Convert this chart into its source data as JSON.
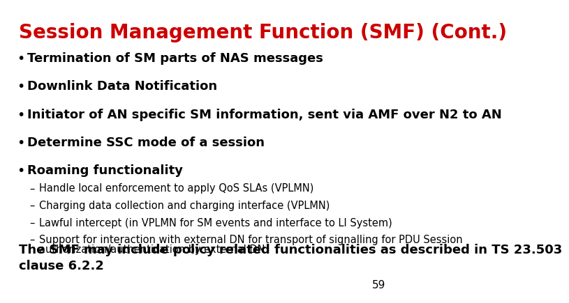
{
  "title": "Session Management Function (SMF) (Cont.)",
  "title_color": "#CC0000",
  "title_fontsize": 20,
  "background_color": "#FFFFFF",
  "bullet_points": [
    "Termination of SM parts of NAS messages",
    "Downlink Data Notification",
    "Initiator of AN specific SM information, sent via AMF over N2 to AN",
    "Determine SSC mode of a session",
    "Roaming functionality"
  ],
  "sub_bullets": [
    "Handle local enforcement to apply QoS SLAs (VPLMN)",
    "Charging data collection and charging interface (VPLMN)",
    "Lawful intercept (in VPLMN for SM events and interface to LI System)",
    "Support for interaction with external DN for transport of signalling for PDU Session\nauthorization/authentication by external DN"
  ],
  "footer_line1": "The SMF may include policy related functionalities as described in TS 23.503",
  "footer_line2": "clause 6.2.2",
  "page_number": "59",
  "bullet_fontsize": 13,
  "sub_bullet_fontsize": 10.5,
  "footer_fontsize": 13,
  "page_number_fontsize": 11,
  "text_color": "#000000",
  "font_family": "DejaVu Sans"
}
